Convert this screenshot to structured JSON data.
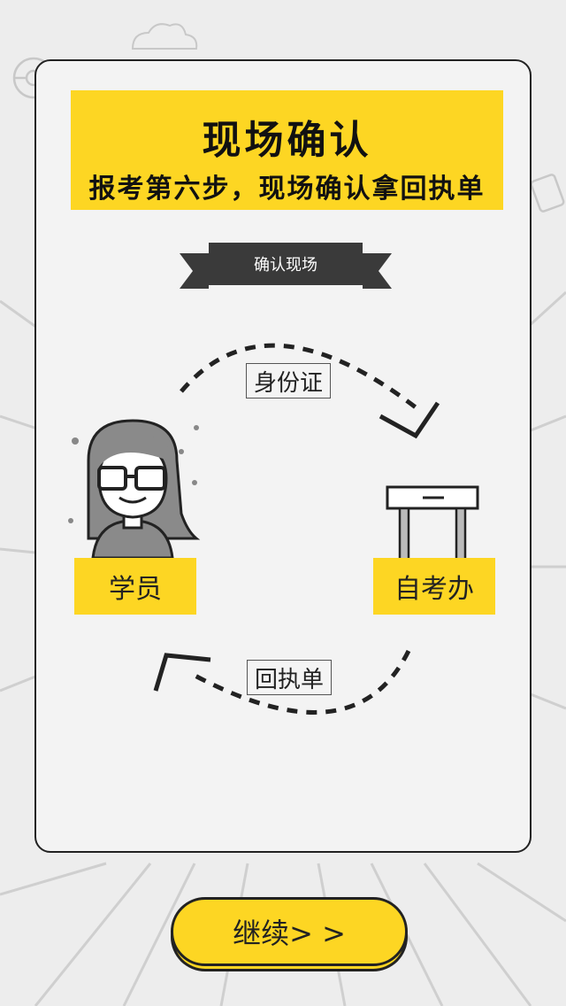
{
  "title": {
    "main": "现场确认",
    "subtitle": "报考第六步，现场确认拿回执单"
  },
  "ribbon": {
    "label": "确认现场"
  },
  "flow": {
    "top_item": "身份证",
    "bottom_item": "回执单"
  },
  "roles": {
    "student": "学员",
    "office": "自考办"
  },
  "continue_button": {
    "label": "继续> >"
  },
  "colors": {
    "accent": "#fdd623",
    "dark": "#3a3a3a",
    "card": "#f3f3f3",
    "background": "#ededed"
  },
  "icons": [
    "student-avatar-icon",
    "desk-icon",
    "arrow-right-icon",
    "arrow-left-icon",
    "cloud-icon",
    "steering-wheel-icon"
  ]
}
